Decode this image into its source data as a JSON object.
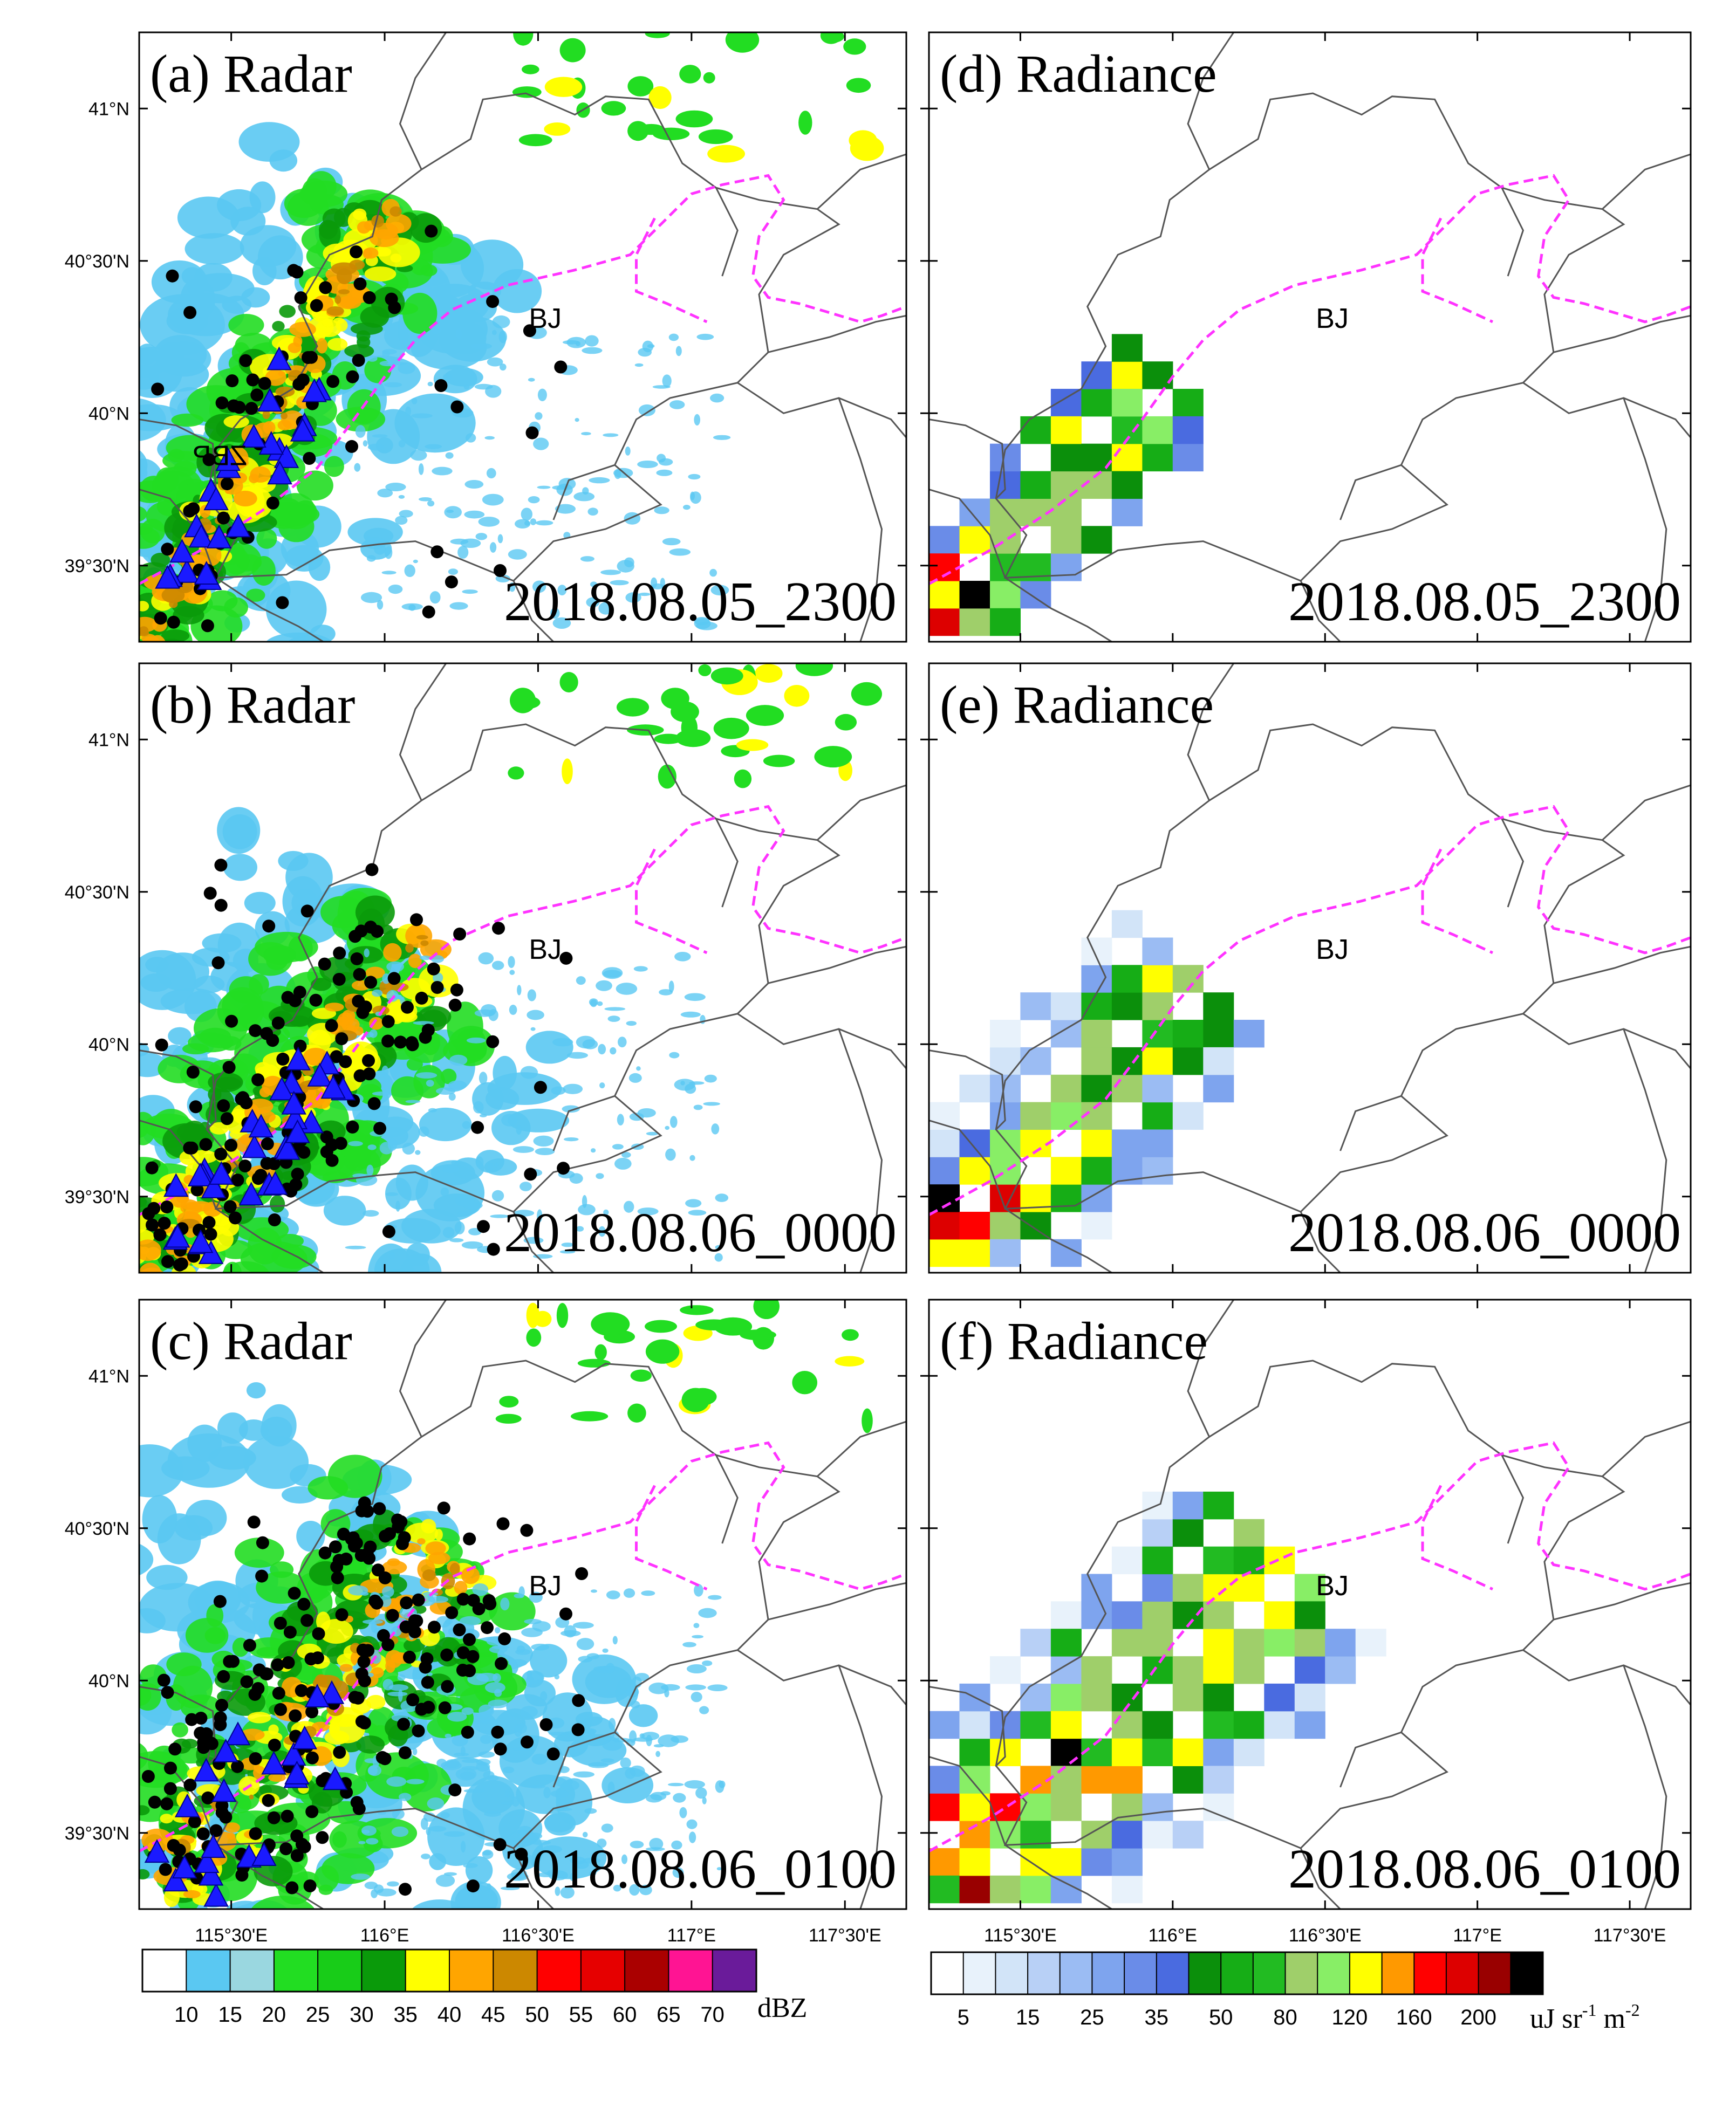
{
  "figure": {
    "lon_range": [
      115.2,
      117.7
    ],
    "lat_range": [
      39.25,
      41.25
    ],
    "lon_ticks": [
      "115°30'E",
      "116°E",
      "116°30'E",
      "117°E",
      "117°30'E"
    ],
    "lat_ticks": [
      "41°N",
      "40°30'N",
      "40°N",
      "39°30'N"
    ],
    "city_label": "BJ",
    "mirrored_label": "ZBP",
    "boundary_color": "#555555",
    "guide_line_color": "#ff33ff",
    "lightning_marker": "circle-black",
    "flash_marker": "triangle-blue"
  },
  "panels": [
    {
      "id": "a",
      "title": "(a) Radar",
      "time": "2018.08.05_2300",
      "type": "radar",
      "show_lon_labels": false,
      "show_lat_labels": true
    },
    {
      "id": "b",
      "title": "(b) Radar",
      "time": "2018.08.06_0000",
      "type": "radar",
      "show_lon_labels": false,
      "show_lat_labels": true
    },
    {
      "id": "c",
      "title": "(c) Radar",
      "time": "2018.08.06_0100",
      "type": "radar",
      "show_lon_labels": true,
      "show_lat_labels": true
    },
    {
      "id": "d",
      "title": "(d) Radiance",
      "time": "2018.08.05_2300",
      "type": "radiance",
      "show_lon_labels": false,
      "show_lat_labels": false
    },
    {
      "id": "e",
      "title": "(e) Radiance",
      "time": "2018.08.06_0000",
      "type": "radiance",
      "show_lon_labels": false,
      "show_lat_labels": false
    },
    {
      "id": "f",
      "title": "(f) Radiance",
      "time": "2018.08.06_0100",
      "type": "radiance",
      "show_lon_labels": true,
      "show_lat_labels": false
    }
  ],
  "colorbars": {
    "radar": {
      "unit": "dBZ",
      "labels": [
        "10",
        "15",
        "20",
        "25",
        "30",
        "35",
        "40",
        "45",
        "50",
        "55",
        "60",
        "65",
        "70"
      ],
      "colors": [
        "#ffffff",
        "#5ac8f2",
        "#9ad7e0",
        "#22dd22",
        "#18cc18",
        "#0a9a0a",
        "#ffff00",
        "#ffa500",
        "#cc8800",
        "#ff0000",
        "#e60000",
        "#aa0000",
        "#ff1493",
        "#6a1b9a"
      ]
    },
    "radiance": {
      "unit": "uJ sr-1 m-2",
      "unit_display": "uJ sr",
      "unit_sup1": "-1",
      "unit_mid": " m",
      "unit_sup2": "-2",
      "labels": [
        "5",
        "15",
        "25",
        "35",
        "50",
        "80",
        "120",
        "160",
        "200"
      ],
      "colors": [
        "#ffffff",
        "#e8f2fb",
        "#d2e4f8",
        "#b8d0f6",
        "#9bbcf3",
        "#7ea4ee",
        "#6a8ce8",
        "#4a6be0",
        "#0b8f0b",
        "#16ad16",
        "#22bb22",
        "#9fcf6a",
        "#88ee66",
        "#ffff00",
        "#ff9900",
        "#ff0000",
        "#dd0000",
        "#990000",
        "#000000"
      ]
    }
  }
}
